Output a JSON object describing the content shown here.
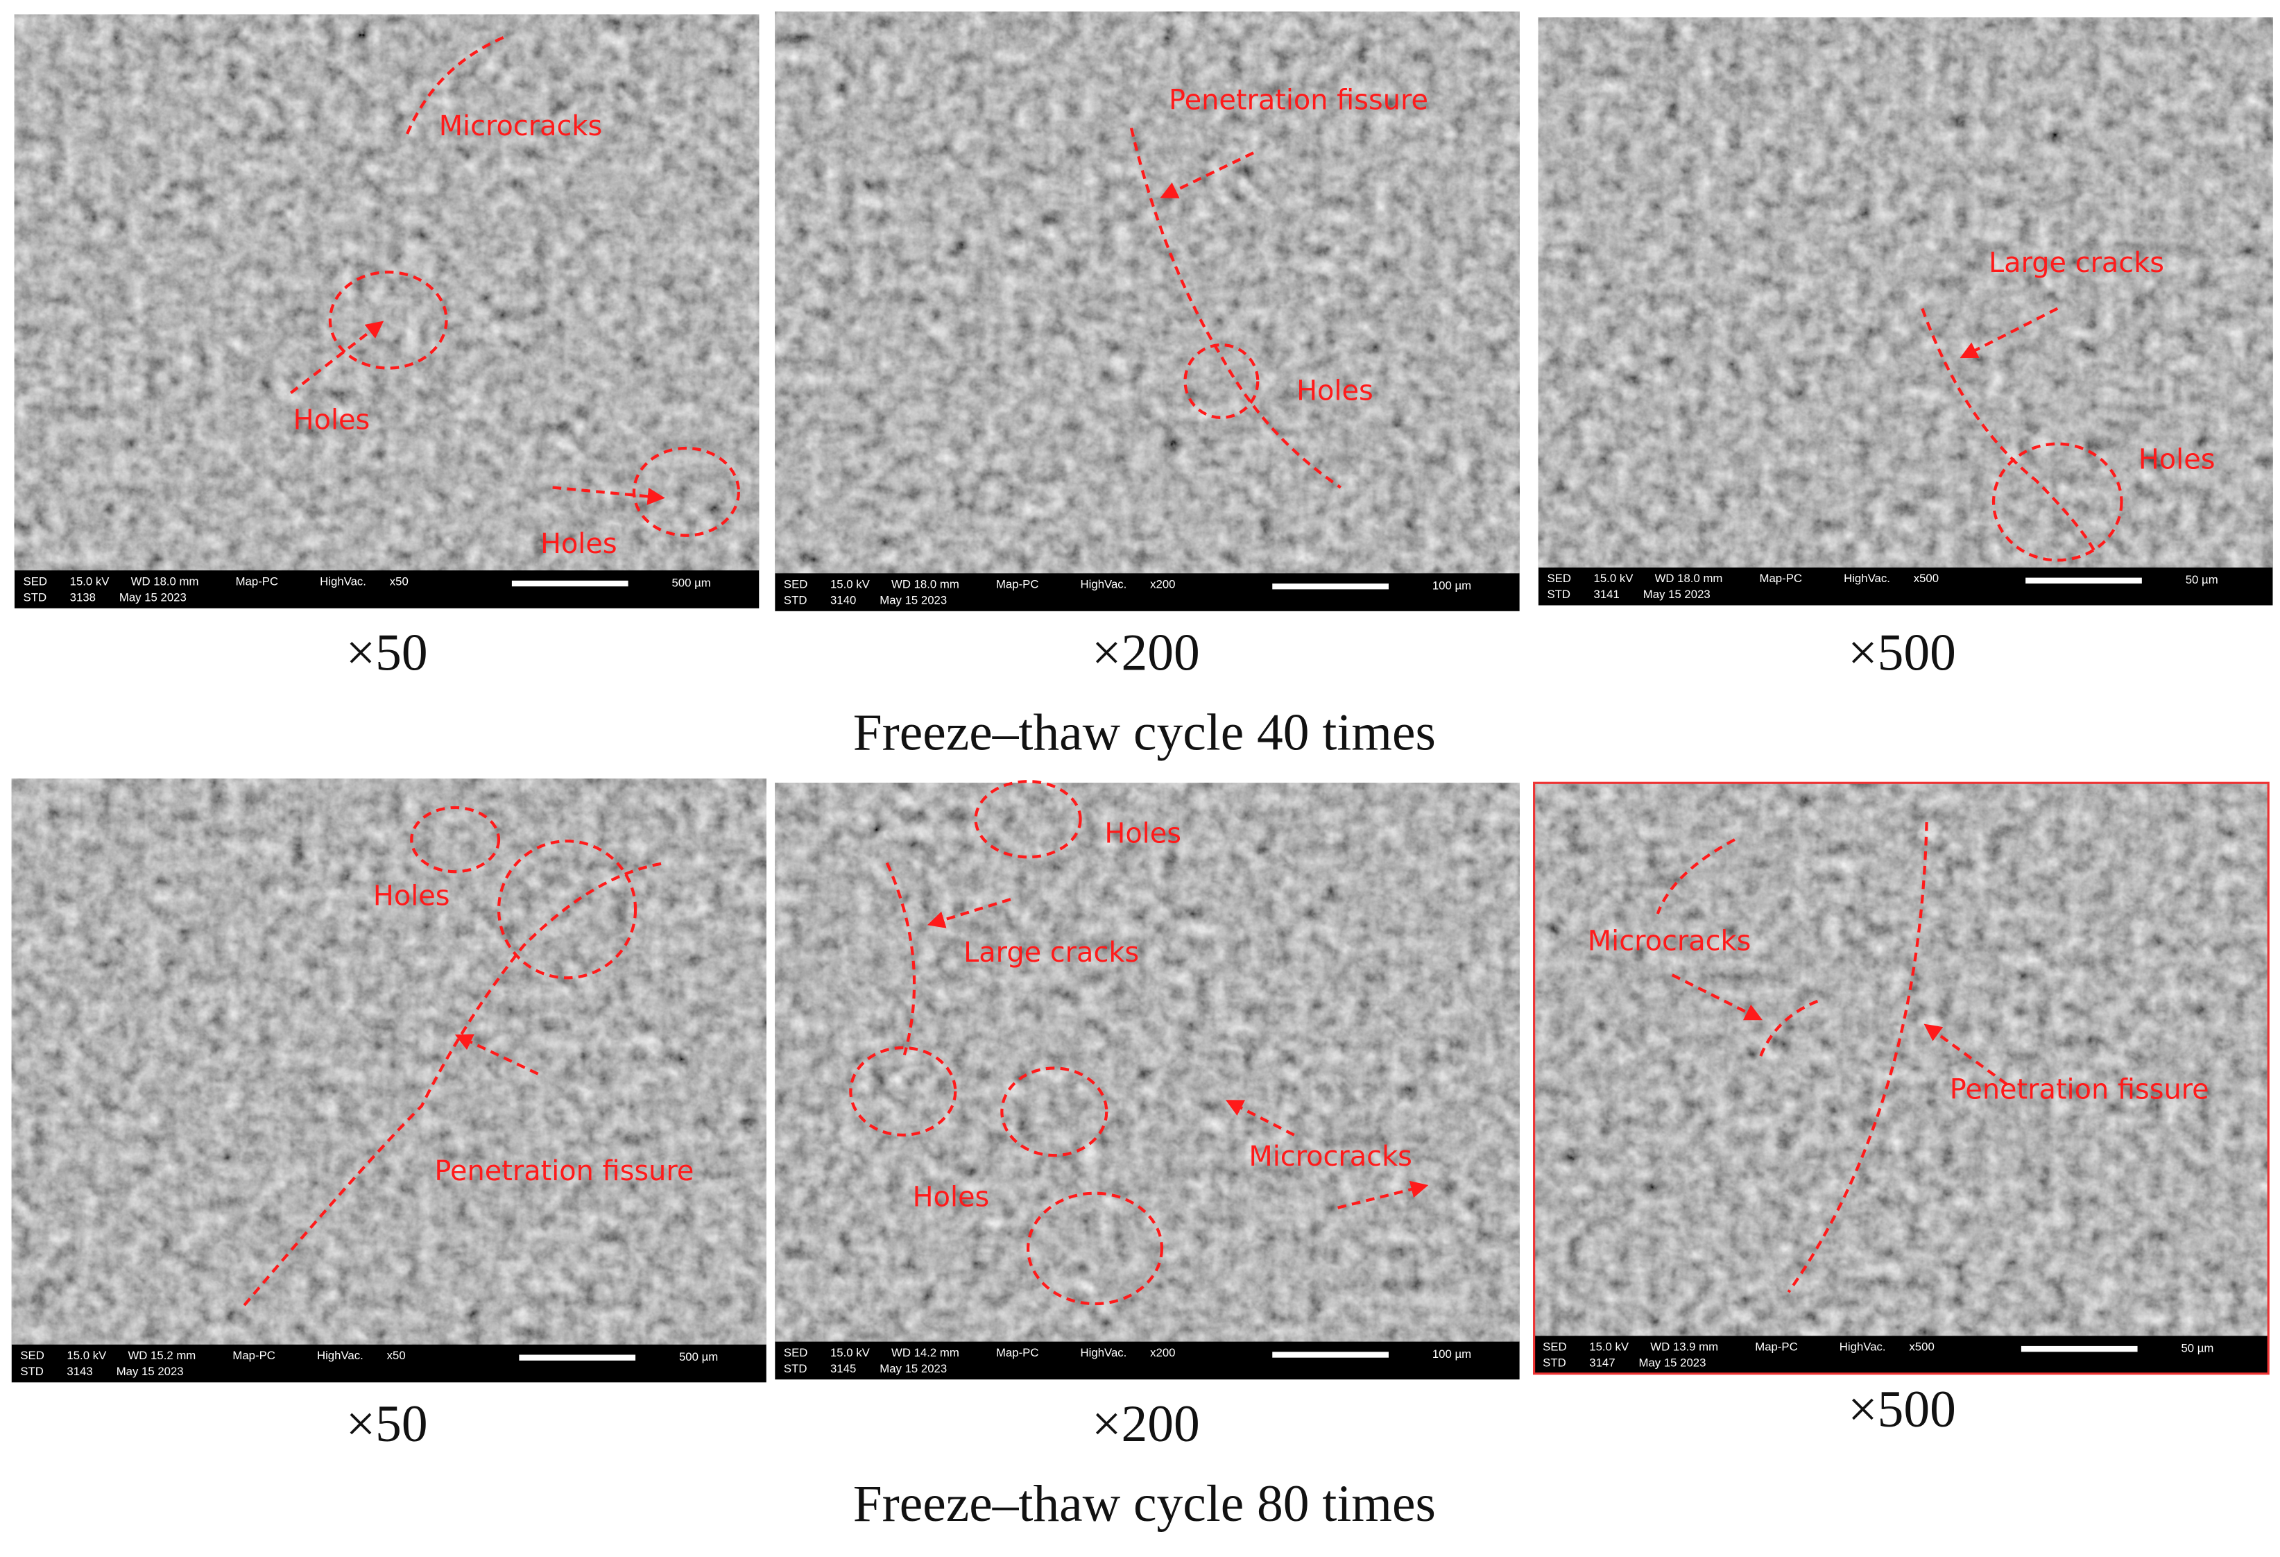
{
  "rows": [
    {
      "caption": "Freeze–thaw cycle 40 times",
      "panels": [
        {
          "magnification": "×50",
          "annotations": [
            "Microcracks",
            "Holes",
            "Holes"
          ],
          "info": {
            "line1": [
              "SED",
              "15.0 kV",
              "WD 18.0 mm",
              "Map-PC",
              "HighVac.",
              "x50"
            ],
            "line2": [
              "STD",
              "3138",
              "May 15 2023"
            ],
            "scale": "500 µm"
          }
        },
        {
          "magnification": "×200",
          "annotations": [
            "Penetration fissure",
            "Holes"
          ],
          "info": {
            "line1": [
              "SED",
              "15.0 kV",
              "WD 18.0 mm",
              "Map-PC",
              "HighVac.",
              "x200"
            ],
            "line2": [
              "STD",
              "3140",
              "May 15 2023"
            ],
            "scale": "100 µm"
          }
        },
        {
          "magnification": "×500",
          "annotations": [
            "Large cracks",
            "Holes"
          ],
          "info": {
            "line1": [
              "SED",
              "15.0 kV",
              "WD 18.0 mm",
              "Map-PC",
              "HighVac.",
              "x500"
            ],
            "line2": [
              "STD",
              "3141",
              "May 15 2023"
            ],
            "scale": "50 µm"
          }
        }
      ]
    },
    {
      "caption": "Freeze–thaw cycle 80 times",
      "panels": [
        {
          "magnification": "×50",
          "annotations": [
            "Holes",
            "Penetration fissure"
          ],
          "info": {
            "line1": [
              "SED",
              "15.0 kV",
              "WD 15.2 mm",
              "Map-PC",
              "HighVac.",
              "x50"
            ],
            "line2": [
              "STD",
              "3143",
              "May 15 2023"
            ],
            "scale": "500 µm"
          }
        },
        {
          "magnification": "×200",
          "annotations": [
            "Holes",
            "Large cracks",
            "Holes",
            "Microcracks"
          ],
          "info": {
            "line1": [
              "SED",
              "15.0 kV",
              "WD 14.2 mm",
              "Map-PC",
              "HighVac.",
              "x200"
            ],
            "line2": [
              "STD",
              "3145",
              "May 15 2023"
            ],
            "scale": "100 µm"
          }
        },
        {
          "magnification": "×500",
          "annotations": [
            "Microcracks",
            "Penetration fissure"
          ],
          "info": {
            "line1": [
              "SED",
              "15.0 kV",
              "WD 13.9 mm",
              "Map-PC",
              "HighVac.",
              "x500"
            ],
            "line2": [
              "STD",
              "3147",
              "May 15 2023"
            ],
            "scale": "50 µm"
          }
        }
      ]
    }
  ]
}
